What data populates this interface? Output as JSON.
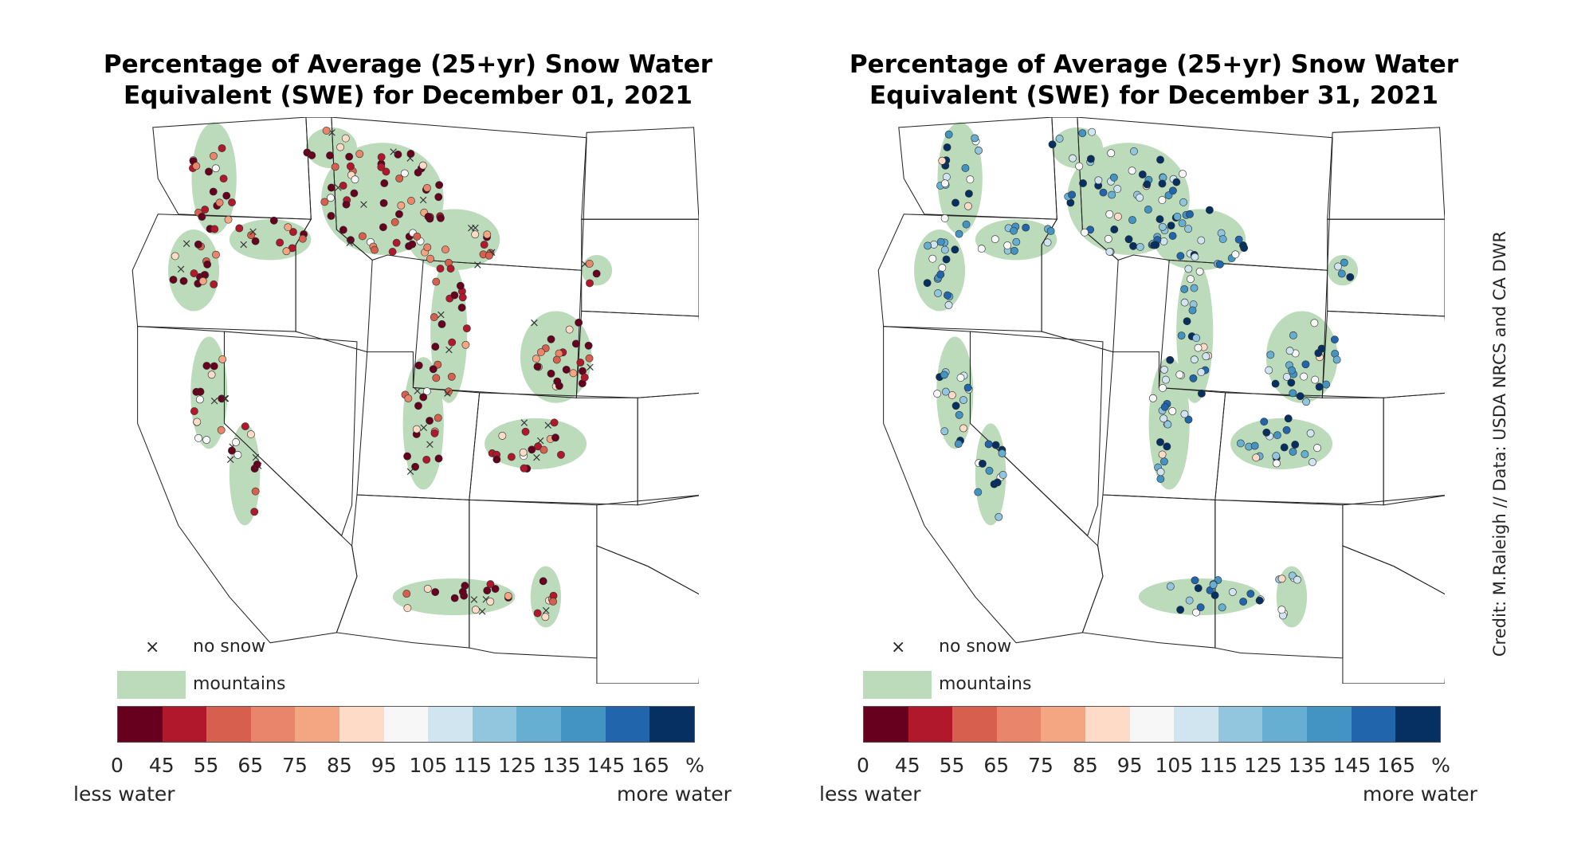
{
  "panels": [
    {
      "title_line1": "Percentage of Average (25+yr) Snow Water",
      "title_line2": "Equivalent (SWE) for December 01, 2021",
      "scenario": "dry"
    },
    {
      "title_line1": "Percentage of Average (25+yr) Snow Water",
      "title_line2": "Equivalent (SWE) for December 31, 2021",
      "scenario": "wet"
    }
  ],
  "legend": {
    "no_snow_symbol": "×",
    "no_snow": "no snow",
    "mountains": "mountains",
    "mountains_color": "#bcdbbb"
  },
  "colorbar": {
    "ticks": [
      "0",
      "45",
      "55",
      "65",
      "75",
      "85",
      "95",
      "105",
      "115",
      "125",
      "135",
      "145",
      "165",
      "%"
    ],
    "colors": [
      "#67001f",
      "#b2182b",
      "#d6604d",
      "#e8856a",
      "#f4a582",
      "#fddbc7",
      "#f7f7f7",
      "#d1e5f0",
      "#92c5de",
      "#67aed3",
      "#4393c3",
      "#2166ac",
      "#053061"
    ],
    "less_label": "less water",
    "more_label": "more water"
  },
  "credit": "Credit: M.Raleigh // Data: USDA NRCS and CA DWR"
}
